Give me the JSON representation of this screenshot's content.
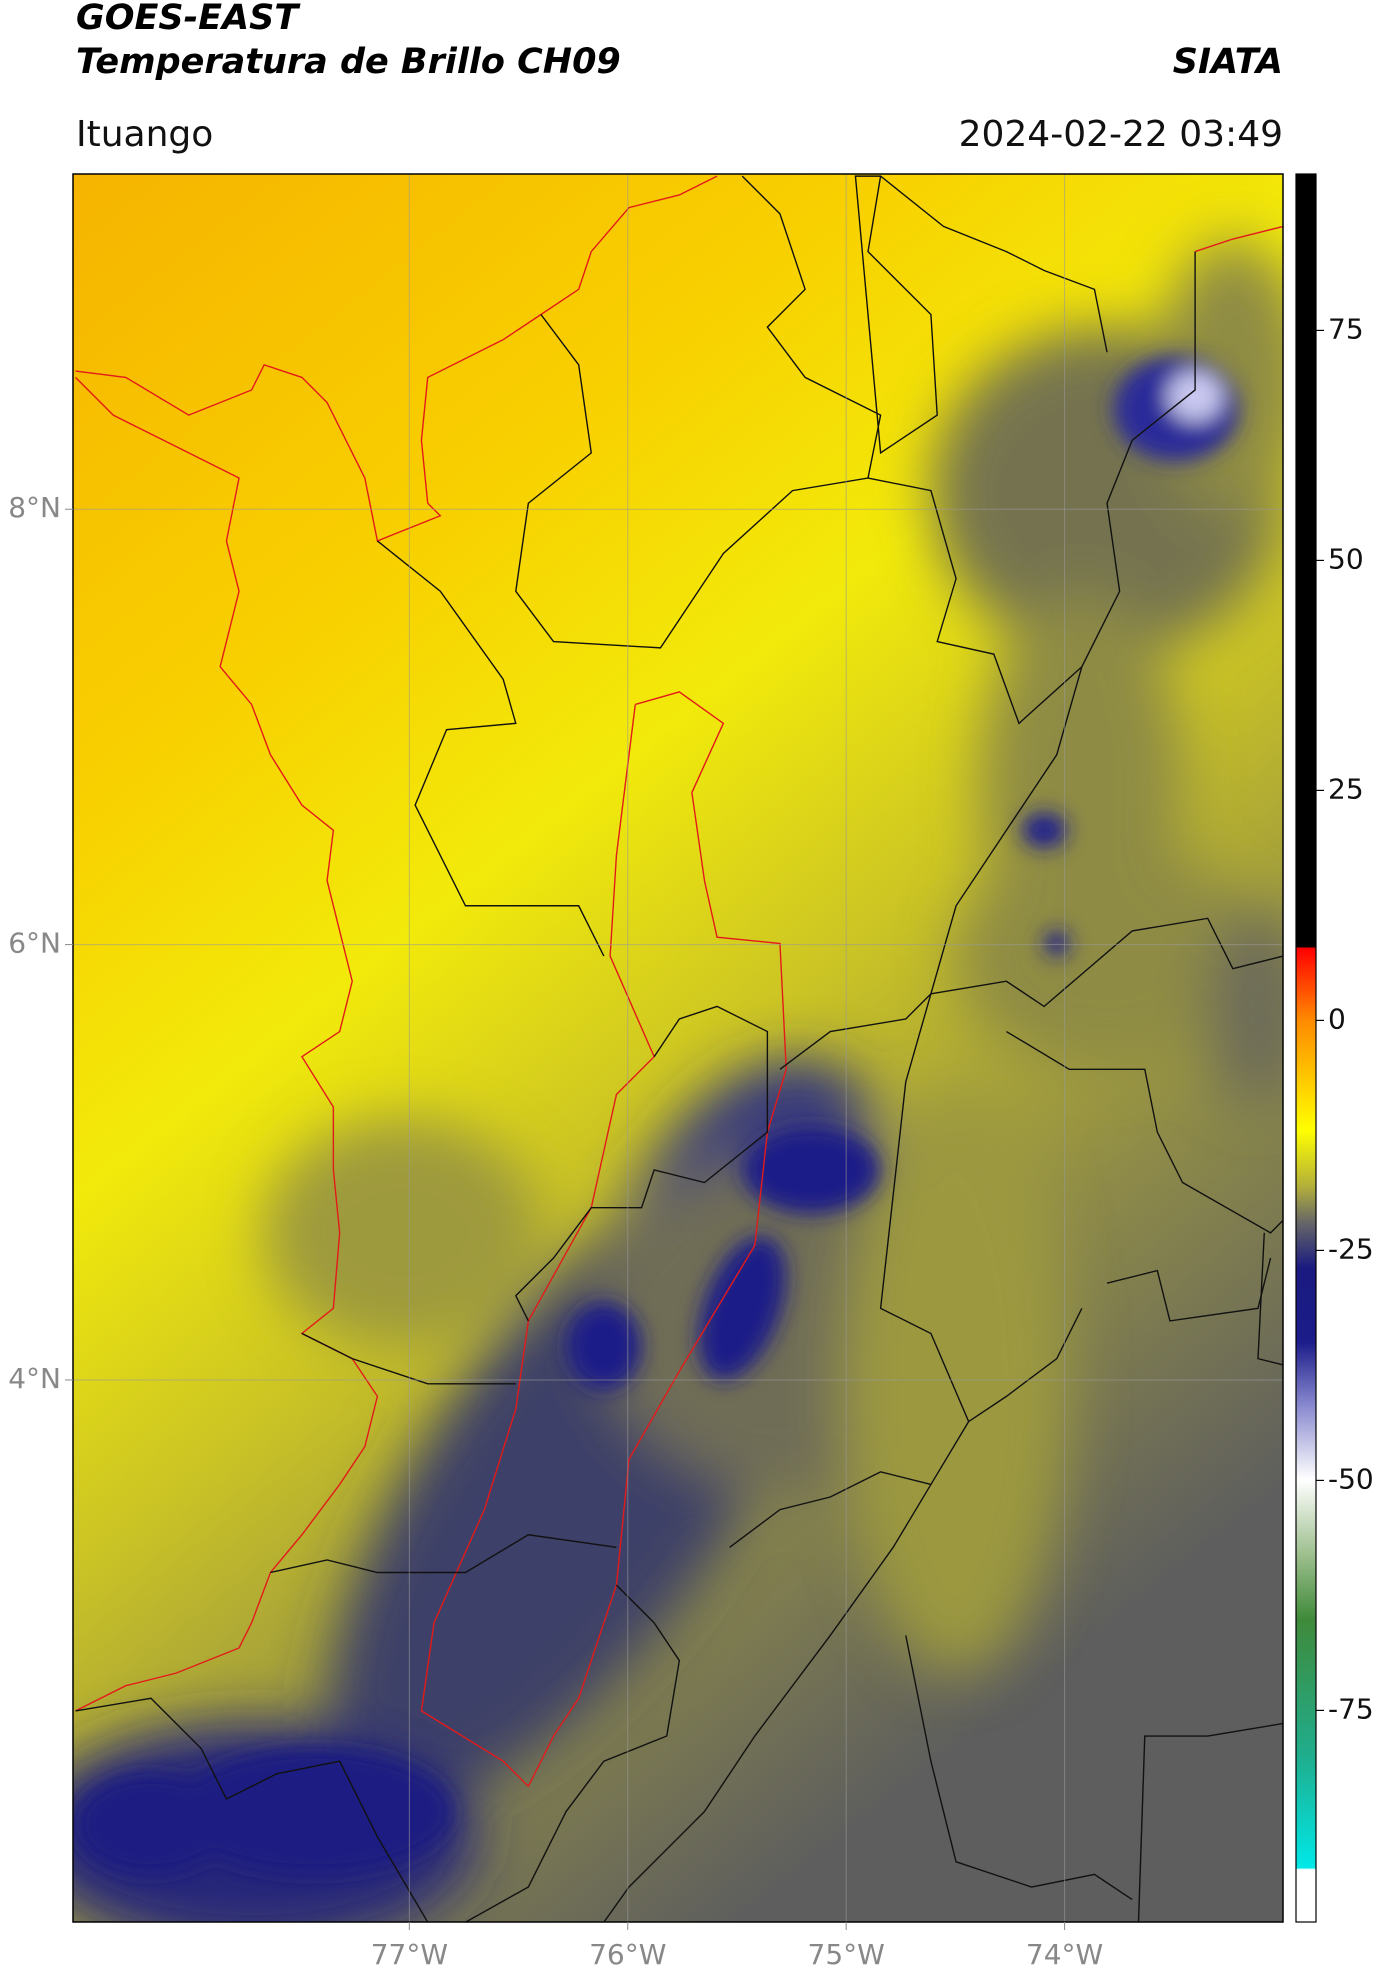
{
  "header": {
    "title": "GOES-EAST",
    "subtitle": "Temperatura de Brillo CH09",
    "source": "SIATA",
    "location": "Ituango",
    "datetime": "2024-02-22 03:49"
  },
  "map": {
    "lon_range": [
      -78.54,
      -73.0
    ],
    "lat_range": [
      1.51,
      9.54
    ],
    "grid": true,
    "lon_ticks": [
      {
        "value": -77,
        "label": "77°W"
      },
      {
        "value": -76,
        "label": "76°W"
      },
      {
        "value": -75,
        "label": "75°W"
      },
      {
        "value": -74,
        "label": "74°W"
      }
    ],
    "lat_ticks": [
      {
        "value": 8,
        "label": "8°N"
      },
      {
        "value": 6,
        "label": "6°N"
      },
      {
        "value": 4,
        "label": "4°N"
      }
    ]
  },
  "colorbar": {
    "range": [
      -98,
      92
    ],
    "ticks": [
      75,
      50,
      25,
      0,
      -25,
      -50,
      -75
    ]
  }
}
